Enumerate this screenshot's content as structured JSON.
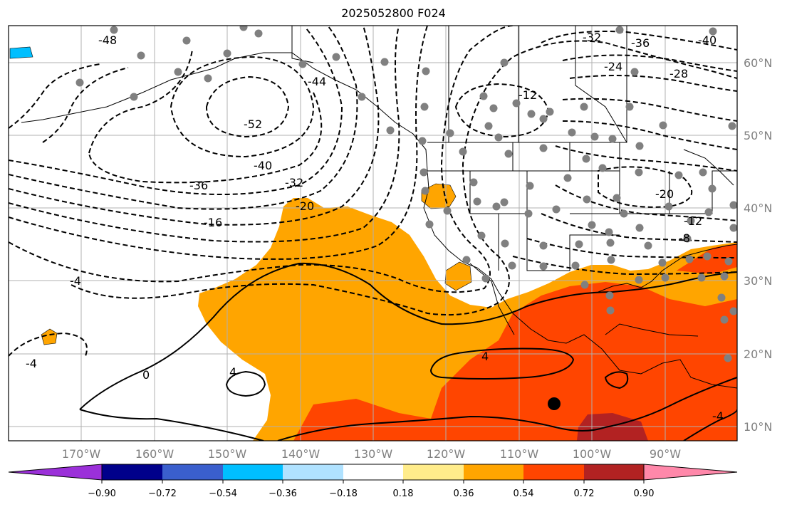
{
  "title": "2025052800 F024",
  "colors": {
    "ocean": "#ffffff",
    "land_outline": "#000000",
    "gridline": "#b0b0b0",
    "station": "#808080",
    "marker": "#000000"
  },
  "map": {
    "lon_labels": [
      "170°W",
      "160°W",
      "150°W",
      "140°W",
      "130°W",
      "120°W",
      "110°W",
      "100°W",
      "90°W"
    ],
    "lat_labels": [
      "60°N",
      "50°N",
      "40°N",
      "30°N",
      "20°N",
      "10°N"
    ],
    "contour_labels": [
      "-48",
      "-44",
      "-52",
      "-40",
      "-36",
      "-32",
      "-20",
      "-16",
      "-12",
      "-32",
      "-36",
      "-40",
      "-24",
      "-28",
      "-20",
      "-12",
      "-8",
      "-4",
      "-4",
      "0",
      "4",
      "4",
      "-4"
    ]
  },
  "colorbar": {
    "colors": [
      "#9b30d9",
      "#00008b",
      "#3a5fcd",
      "#00bfff",
      "#b0e2ff",
      "#ffffff",
      "#ffec8b",
      "#ffa500",
      "#ff4500",
      "#b22222",
      "#ff88aa"
    ],
    "tick_labels": [
      "−0.90",
      "−0.72",
      "−0.54",
      "−0.36",
      "−0.18",
      "0.18",
      "0.36",
      "0.54",
      "0.72",
      "0.90"
    ]
  }
}
